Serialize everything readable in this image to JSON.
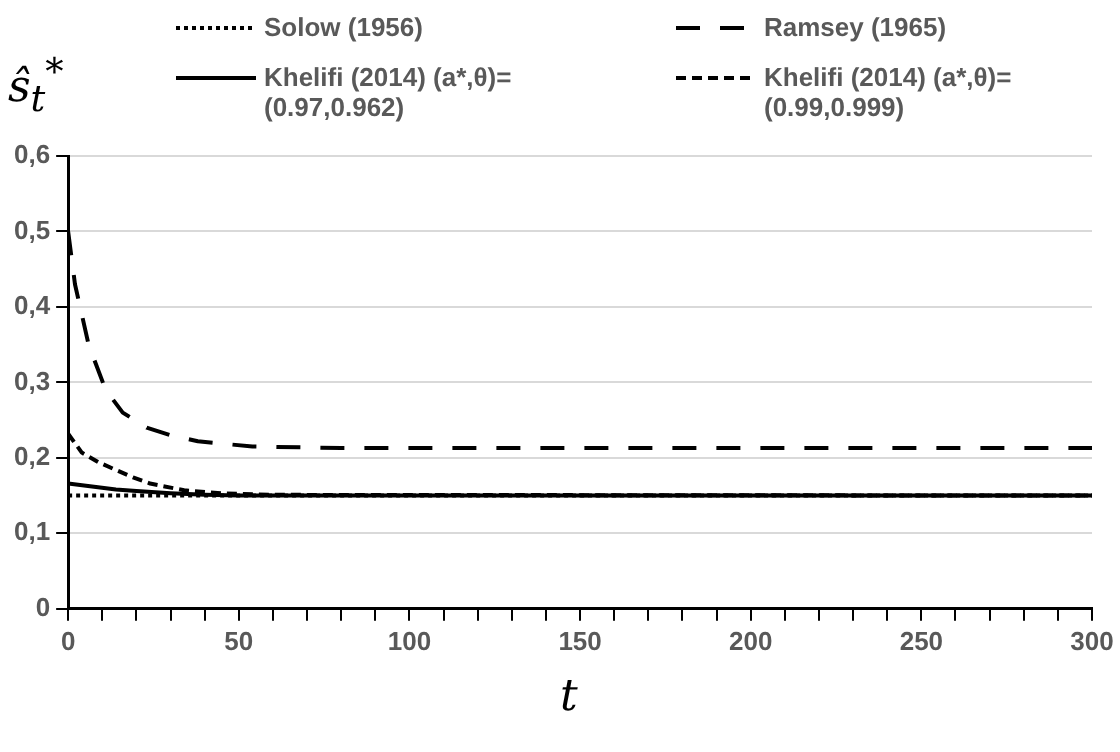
{
  "chart_data": {
    "type": "line",
    "ylabel": "ŝ$_{t}$$^{*}$",
    "xlabel": "t",
    "xlim": [
      0,
      300
    ],
    "ylim": [
      0,
      0.6
    ],
    "xticks": [
      0,
      {
        "value": 10,
        "label": null
      },
      {
        "value": 20,
        "label": null
      },
      {
        "value": 30,
        "label": null
      },
      {
        "value": 40,
        "label": null
      },
      50,
      {
        "value": 60,
        "label": null
      },
      {
        "value": 70,
        "label": null
      },
      {
        "value": 80,
        "label": null
      },
      {
        "value": 90,
        "label": null
      },
      100,
      {
        "value": 110,
        "label": null
      },
      {
        "value": 120,
        "label": null
      },
      {
        "value": 130,
        "label": null
      },
      {
        "value": 140,
        "label": null
      },
      150,
      {
        "value": 160,
        "label": null
      },
      {
        "value": 170,
        "label": null
      },
      {
        "value": 180,
        "label": null
      },
      {
        "value": 190,
        "label": null
      },
      200,
      {
        "value": 210,
        "label": null
      },
      {
        "value": 220,
        "label": null
      },
      {
        "value": 230,
        "label": null
      },
      {
        "value": 240,
        "label": null
      },
      250,
      {
        "value": 260,
        "label": null
      },
      {
        "value": 270,
        "label": null
      },
      {
        "value": 280,
        "label": null
      },
      {
        "value": 290,
        "label": null
      },
      300
    ],
    "yticks": [
      0,
      {
        "value": 0.1,
        "label": "0,1"
      },
      {
        "value": 0.2,
        "label": "0,2"
      },
      {
        "value": 0.3,
        "label": "0,3"
      },
      {
        "value": 0.4,
        "label": "0,4"
      },
      {
        "value": 0.5,
        "label": "0,5"
      },
      {
        "value": 0.6,
        "label": "0,6"
      }
    ],
    "grid": "y",
    "legend": "top",
    "marker": "none",
    "series": [
      {
        "name": "Solow (1956)",
        "color": "#000000",
        "line_style": "dotted",
        "x": [
          0,
          300
        ],
        "values": [
          0.15,
          0.15
        ]
      },
      {
        "name": "Ramsey (1965)",
        "color": "#000000",
        "line_style": "dashed",
        "x": [
          0,
          2,
          6,
          11,
          16,
          23,
          30,
          38,
          54,
          80,
          300
        ],
        "values": [
          0.5,
          0.43,
          0.35,
          0.29,
          0.26,
          0.24,
          0.23,
          0.222,
          0.215,
          0.213,
          0.213
        ]
      },
      {
        "name": "Khelifi (2014) (a*,θ)=(0.97,0.962)",
        "color": "#000000",
        "line_style": "solid",
        "x": [
          0,
          7,
          14,
          20,
          30,
          40,
          50,
          300
        ],
        "values": [
          0.166,
          0.162,
          0.158,
          0.156,
          0.153,
          0.151,
          0.15,
          0.15
        ]
      },
      {
        "name": "Khelifi (2014) (a*,θ)=(0.99,0.999)",
        "color": "#000000",
        "line_style": "dashed",
        "x": [
          0,
          4,
          9,
          14,
          19,
          24,
          34,
          45,
          60,
          300
        ],
        "values": [
          0.232,
          0.207,
          0.194,
          0.184,
          0.174,
          0.166,
          0.157,
          0.153,
          0.151,
          0.15
        ]
      }
    ]
  }
}
